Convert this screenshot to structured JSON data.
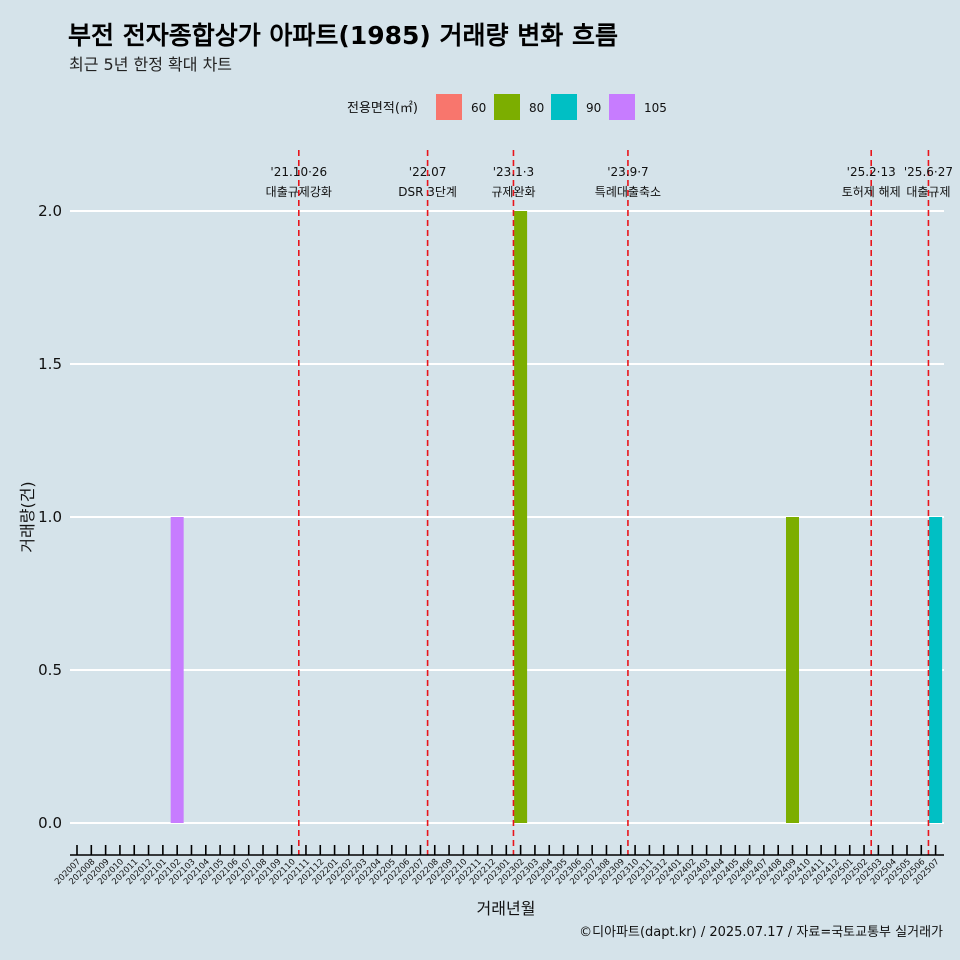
{
  "header": {
    "title": "부전 전자종합상가 아파트(1985) 거래량 변화 흐름",
    "subtitle": "최근 5년 한정 확대 차트"
  },
  "legend": {
    "title": "전용면적(㎡)",
    "items": [
      {
        "label": "60",
        "color": "#F8766D"
      },
      {
        "label": "80",
        "color": "#7CAE00"
      },
      {
        "label": "90",
        "color": "#00BFC4"
      },
      {
        "label": "105",
        "color": "#C77CFF"
      }
    ]
  },
  "caption": "©디아파트(dapt.kr) / 2025.07.17 / 자료=국토교통부 실거래가",
  "chart_data": {
    "type": "bar",
    "xlabel": "거래년월",
    "ylabel": "거래량(건)",
    "ylim": [
      0,
      2
    ],
    "yticks": [
      0.0,
      0.5,
      1.0,
      1.5,
      2.0
    ],
    "ytick_labels": [
      "0.0",
      "0.5",
      "1.0",
      "1.5",
      "2.0"
    ],
    "grid": true,
    "legend_position": "top",
    "categories": [
      "202007",
      "202008",
      "202009",
      "202010",
      "202011",
      "202012",
      "202101",
      "202102",
      "202103",
      "202104",
      "202105",
      "202106",
      "202107",
      "202108",
      "202109",
      "202110",
      "202111",
      "202112",
      "202201",
      "202202",
      "202203",
      "202204",
      "202205",
      "202206",
      "202207",
      "202208",
      "202209",
      "202210",
      "202211",
      "202212",
      "202301",
      "202302",
      "202303",
      "202304",
      "202305",
      "202306",
      "202307",
      "202308",
      "202309",
      "202310",
      "202311",
      "202312",
      "202401",
      "202402",
      "202403",
      "202404",
      "202405",
      "202406",
      "202407",
      "202408",
      "202409",
      "202410",
      "202411",
      "202412",
      "202501",
      "202502",
      "202503",
      "202504",
      "202505",
      "202506",
      "202507"
    ],
    "bars": [
      {
        "x": "202102",
        "value": 1,
        "area": "105"
      },
      {
        "x": "202302",
        "value": 2,
        "area": "80"
      },
      {
        "x": "202409",
        "value": 1,
        "area": "80"
      },
      {
        "x": "202507",
        "value": 1,
        "area": "90"
      }
    ],
    "events": [
      {
        "x": "202110",
        "date": "'21.10·26",
        "label": "대출규제강화"
      },
      {
        "x": "202207",
        "date": "'22.07",
        "label": "DSR 3단계"
      },
      {
        "x": "202301",
        "date": "'23.1·3",
        "label": "규제완화"
      },
      {
        "x": "202309",
        "date": "'23.9·7",
        "label": "특례대출축소"
      },
      {
        "x": "202502",
        "date": "'25.2·13",
        "label": "토허제 해제"
      },
      {
        "x": "202506",
        "date": "'25.6·27",
        "label": "대출규제"
      }
    ]
  }
}
